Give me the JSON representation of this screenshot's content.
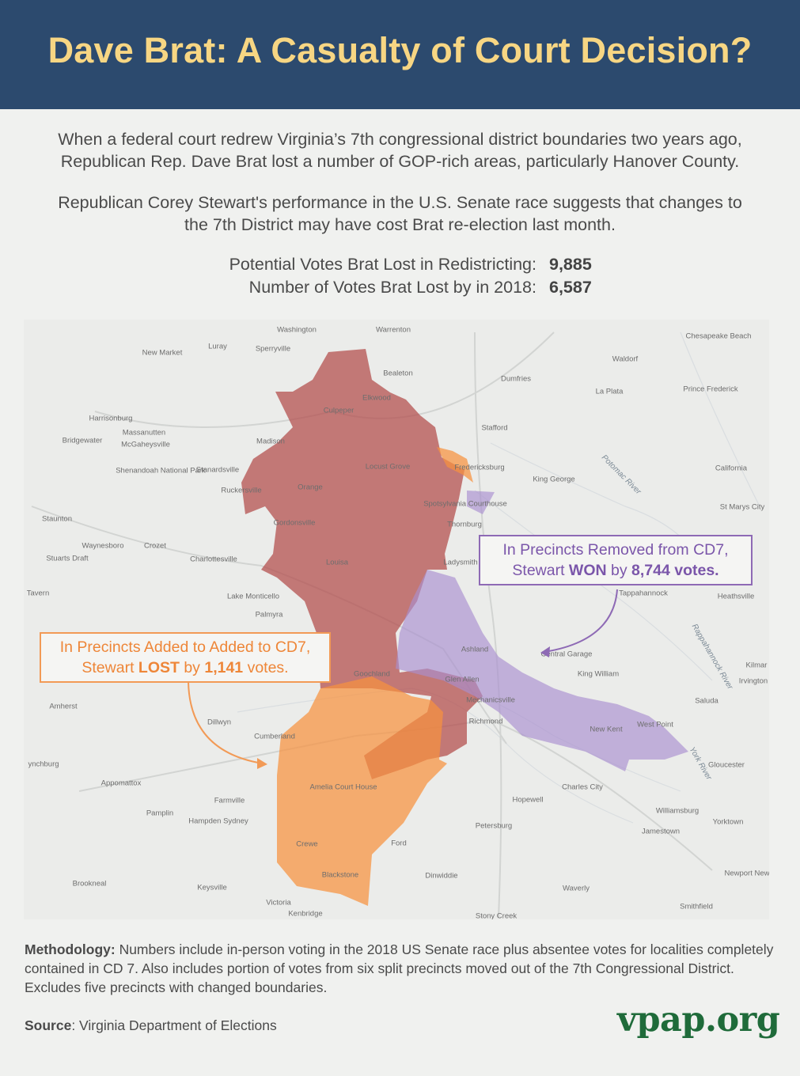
{
  "header": {
    "title": "Dave Brat: A Casualty of Court Decision?"
  },
  "intro": {
    "paragraphs": [
      [
        "When a federal court redrew Virginia’s 7th congressional district boundaries two years ago,",
        "Republican Rep. Dave Brat lost a number of GOP-rich areas, particularly Hanover County."
      ],
      [
        "Republican Corey Stewart's performance in the U.S. Senate race suggests that changes to",
        "the 7th District may have cost Brat re-election last month."
      ]
    ]
  },
  "stats": {
    "rows": [
      {
        "label": "Potential Votes Brat Lost in Redistricting:",
        "value": "9,885"
      },
      {
        "label": "Number of Votes Brat Lost by in 2018:",
        "value": "6,587"
      }
    ]
  },
  "map": {
    "labels": [
      "Washington",
      "Warrenton",
      "Chesapeake Beach",
      "Luray",
      "Sperryville",
      "New Market",
      "Waldorf",
      "Bealeton",
      "Dumfries",
      "Prince Frederick",
      "La Plata",
      "Elkwood",
      "Culpeper",
      "Harrisonburg",
      "Stafford",
      "Massanutten",
      "Bridgewater",
      "McGaheysville",
      "Madison",
      "Shenandoah National Park",
      "Stanardsville",
      "Locust Grove",
      "Fredericksburg",
      "King George",
      "California",
      "Ruckersville",
      "Orange",
      "Spotsylvania Courthouse",
      "Staunton",
      "Gordonsville",
      "Thornburg",
      "St Marys City",
      "Waynesboro",
      "Crozet",
      "Stuarts Draft",
      "Charlottesville",
      "Louisa",
      "Ladysmith",
      "Tavern",
      "Lake Monticello",
      "Palmyra",
      "Tappahannock",
      "Heathsville",
      "Ashland",
      "Central Garage",
      "King William",
      "Kilmar",
      "Irvington",
      "Goochland",
      "Glen Allen",
      "Amherst",
      "Mechanicsville",
      "Saluda",
      "Dillwyn",
      "Richmond",
      "West Point",
      "New Kent",
      "Cumberland",
      "Gloucester",
      "ynchburg",
      "Amelia Court House",
      "Appomattox",
      "Charles City",
      "Farmville",
      "Hopewell",
      "Williamsburg",
      "Pamplin",
      "Hampden Sydney",
      "Petersburg",
      "Yorktown",
      "Jamestown",
      "Ford",
      "Crewe",
      "Newport New",
      "Brookneal",
      "Blackstone",
      "Keysville",
      "Dinwiddie",
      "Waverly",
      "Smithfield",
      "Victoria",
      "Kenbridge",
      "Stony Creek"
    ],
    "rivers": [
      "Potomac River",
      "Rappahannock River",
      "York River"
    ]
  },
  "callouts": {
    "removed": {
      "line1": "In Precincts Removed from CD7,",
      "line2": [
        "Stewart ",
        "WON",
        " by ",
        "8,744 votes."
      ]
    },
    "added": {
      "line1": "In Precincts Added to Added to CD7,",
      "line2": [
        "Stewart ",
        "LOST",
        " by ",
        "1,141",
        " votes."
      ]
    }
  },
  "methodology": {
    "label": "Methodology:",
    "text": " Numbers include in-person voting in the 2018 US Senate race plus absentee votes for localities completely contained in CD 7. Also includes portion of votes from six split precincts moved out of the 7th Congressional District. Excludes five precincts with changed boundaries."
  },
  "source": {
    "label": "Source",
    "text": ": Virginia Department of Elections"
  },
  "logo": "vpap.org"
}
